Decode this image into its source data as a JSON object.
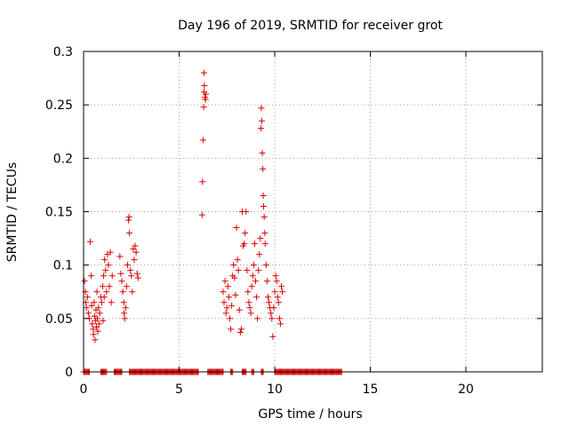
{
  "chart_data": {
    "type": "scatter",
    "title": "Day 196 of 2019, SRMTID for receiver grot",
    "xlabel": "GPS time / hours",
    "ylabel": "SRMTID / TECUs",
    "xlim": [
      0,
      24
    ],
    "ylim": [
      0,
      0.3
    ],
    "x_ticks": [
      0,
      5,
      10,
      15,
      20
    ],
    "y_ticks": [
      0,
      0.05,
      0.1,
      0.15,
      0.2,
      0.25,
      0.3
    ],
    "x_tick_labels": [
      "0",
      "5",
      "10",
      "15",
      "20"
    ],
    "y_tick_labels": [
      "0",
      "0.05",
      "0.1",
      "0.15",
      "0.2",
      "0.25",
      "0.3"
    ],
    "grid": true,
    "grid_style": "dotted",
    "marker": "+",
    "series": [
      {
        "color": "#dd0000",
        "points": [
          [
            0.05,
            0.085
          ],
          [
            0.1,
            0.075
          ],
          [
            0.12,
            0.065
          ],
          [
            0.15,
            0.06
          ],
          [
            0.2,
            0.07
          ],
          [
            0.25,
            0.055
          ],
          [
            0.3,
            0.05
          ],
          [
            0.35,
            0.122
          ],
          [
            0.4,
            0.09
          ],
          [
            0.42,
            0.062
          ],
          [
            0.45,
            0.045
          ],
          [
            0.5,
            0.04
          ],
          [
            0.52,
            0.035
          ],
          [
            0.55,
            0.065
          ],
          [
            0.58,
            0.052
          ],
          [
            0.6,
            0.03
          ],
          [
            0.62,
            0.048
          ],
          [
            0.65,
            0.058
          ],
          [
            0.68,
            0.042
          ],
          [
            0.7,
            0.075
          ],
          [
            0.72,
            0.05
          ],
          [
            0.75,
            0.038
          ],
          [
            0.78,
            0.06
          ],
          [
            0.8,
            0.045
          ],
          [
            0.85,
            0.055
          ],
          [
            0.9,
            0.07
          ],
          [
            0.95,
            0.065
          ],
          [
            1.0,
            0.08
          ],
          [
            1.02,
            0.048
          ],
          [
            1.05,
            0.09
          ],
          [
            1.08,
            0.07
          ],
          [
            1.1,
            0.105
          ],
          [
            1.15,
            0.095
          ],
          [
            1.2,
            0.075
          ],
          [
            1.25,
            0.11
          ],
          [
            1.3,
            0.1
          ],
          [
            1.35,
            0.08
          ],
          [
            1.4,
            0.112
          ],
          [
            1.45,
            0.065
          ],
          [
            1.5,
            0.09
          ],
          [
            1.9,
            0.108
          ],
          [
            1.95,
            0.092
          ],
          [
            2.0,
            0.085
          ],
          [
            2.05,
            0.075
          ],
          [
            2.1,
            0.065
          ],
          [
            2.12,
            0.055
          ],
          [
            2.15,
            0.05
          ],
          [
            2.2,
            0.06
          ],
          [
            2.25,
            0.08
          ],
          [
            2.3,
            0.1
          ],
          [
            2.35,
            0.142
          ],
          [
            2.38,
            0.145
          ],
          [
            2.4,
            0.13
          ],
          [
            2.45,
            0.095
          ],
          [
            2.5,
            0.09
          ],
          [
            2.55,
            0.075
          ],
          [
            2.6,
            0.115
          ],
          [
            2.65,
            0.105
          ],
          [
            2.7,
            0.118
          ],
          [
            2.75,
            0.112
          ],
          [
            2.8,
            0.092
          ],
          [
            2.85,
            0.088
          ],
          [
            6.2,
            0.147
          ],
          [
            6.22,
            0.178
          ],
          [
            6.25,
            0.217
          ],
          [
            6.28,
            0.248
          ],
          [
            6.3,
            0.262
          ],
          [
            6.32,
            0.268
          ],
          [
            6.35,
            0.257
          ],
          [
            6.38,
            0.255
          ],
          [
            6.4,
            0.26
          ],
          [
            6.3,
            0.28
          ],
          [
            7.3,
            0.075
          ],
          [
            7.35,
            0.065
          ],
          [
            7.4,
            0.085
          ],
          [
            7.45,
            0.055
          ],
          [
            7.5,
            0.06
          ],
          [
            7.55,
            0.08
          ],
          [
            7.6,
            0.07
          ],
          [
            7.65,
            0.05
          ],
          [
            7.7,
            0.04
          ],
          [
            7.75,
            0.062
          ],
          [
            7.8,
            0.09
          ],
          [
            7.85,
            0.1
          ],
          [
            7.9,
            0.088
          ],
          [
            7.95,
            0.072
          ],
          [
            8.0,
            0.135
          ],
          [
            8.05,
            0.105
          ],
          [
            8.1,
            0.095
          ],
          [
            8.15,
            0.058
          ],
          [
            8.2,
            0.037
          ],
          [
            8.25,
            0.04
          ],
          [
            8.3,
            0.15
          ],
          [
            8.35,
            0.118
          ],
          [
            8.4,
            0.12
          ],
          [
            8.45,
            0.13
          ],
          [
            8.5,
            0.15
          ],
          [
            8.55,
            0.095
          ],
          [
            8.6,
            0.075
          ],
          [
            8.65,
            0.065
          ],
          [
            8.7,
            0.06
          ],
          [
            8.75,
            0.055
          ],
          [
            8.8,
            0.08
          ],
          [
            8.85,
            0.09
          ],
          [
            8.9,
            0.1
          ],
          [
            8.95,
            0.12
          ],
          [
            9.0,
            0.085
          ],
          [
            9.05,
            0.07
          ],
          [
            9.1,
            0.05
          ],
          [
            9.15,
            0.095
          ],
          [
            9.2,
            0.11
          ],
          [
            9.25,
            0.125
          ],
          [
            9.28,
            0.228
          ],
          [
            9.3,
            0.247
          ],
          [
            9.32,
            0.235
          ],
          [
            9.35,
            0.205
          ],
          [
            9.38,
            0.19
          ],
          [
            9.4,
            0.165
          ],
          [
            9.42,
            0.155
          ],
          [
            9.45,
            0.145
          ],
          [
            9.48,
            0.13
          ],
          [
            9.5,
            0.12
          ],
          [
            9.55,
            0.1
          ],
          [
            9.6,
            0.085
          ],
          [
            9.65,
            0.07
          ],
          [
            9.7,
            0.065
          ],
          [
            9.75,
            0.06
          ],
          [
            9.8,
            0.055
          ],
          [
            9.85,
            0.05
          ],
          [
            9.9,
            0.033
          ],
          [
            9.95,
            0.06
          ],
          [
            10.0,
            0.075
          ],
          [
            10.05,
            0.09
          ],
          [
            10.1,
            0.085
          ],
          [
            10.15,
            0.07
          ],
          [
            10.2,
            0.065
          ],
          [
            10.25,
            0.05
          ],
          [
            10.3,
            0.045
          ],
          [
            10.35,
            0.08
          ],
          [
            10.4,
            0.075
          ]
        ],
        "zero_ranges_hours": [
          [
            0.0,
            0.3
          ],
          [
            0.9,
            1.2
          ],
          [
            1.6,
            2.0
          ],
          [
            2.4,
            6.0
          ],
          [
            6.5,
            7.3
          ],
          [
            7.7,
            7.8
          ],
          [
            8.3,
            8.5
          ],
          [
            8.8,
            8.9
          ],
          [
            9.3,
            9.4
          ],
          [
            10.0,
            13.5
          ]
        ]
      }
    ]
  }
}
